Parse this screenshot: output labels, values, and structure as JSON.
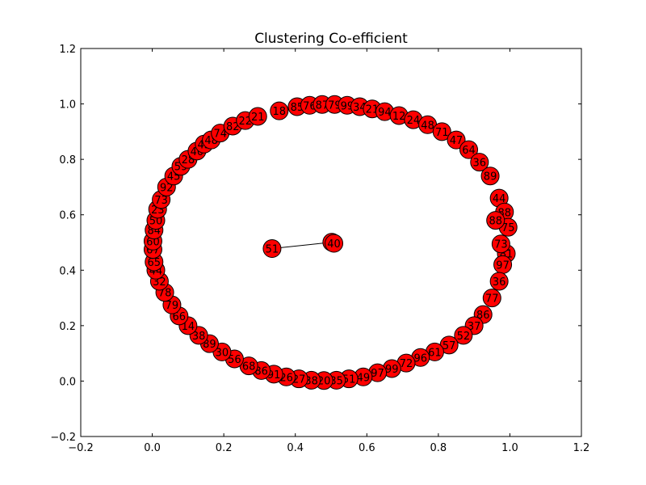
{
  "chart_data": {
    "type": "network-graph",
    "title": "Clustering Co-efficient",
    "xlim": [
      -0.2,
      1.2
    ],
    "ylim": [
      -0.2,
      1.2
    ],
    "x_ticks": [
      -0.2,
      0.0,
      0.2,
      0.4,
      0.6,
      0.8,
      1.0,
      1.2
    ],
    "y_ticks": [
      -0.2,
      0.0,
      0.2,
      0.4,
      0.6,
      0.8,
      1.0,
      1.2
    ],
    "x_tick_labels": [
      "−0.2",
      "0.0",
      "0.2",
      "0.4",
      "0.6",
      "0.8",
      "1.0",
      "1.2"
    ],
    "y_tick_labels": [
      "−0.2",
      "0.0",
      "0.2",
      "0.4",
      "0.6",
      "0.8",
      "1.0",
      "1.2"
    ],
    "grid": false,
    "node_color": "#ff0000",
    "node_edge_color": "#000000",
    "edge_color": "#000000",
    "nodes": [
      {
        "label": "51",
        "x": 0.335,
        "y": 0.478
      },
      {
        "label": "50",
        "x": 0.502,
        "y": 0.501
      },
      {
        "label": "40",
        "x": 0.508,
        "y": 0.497
      },
      {
        "label": "18",
        "x": 0.355,
        "y": 0.975
      },
      {
        "label": "85",
        "x": 0.405,
        "y": 0.99
      },
      {
        "label": "76",
        "x": 0.44,
        "y": 0.995
      },
      {
        "label": "87",
        "x": 0.475,
        "y": 0.998
      },
      {
        "label": "79",
        "x": 0.51,
        "y": 0.998
      },
      {
        "label": "99",
        "x": 0.545,
        "y": 0.995
      },
      {
        "label": "34",
        "x": 0.58,
        "y": 0.99
      },
      {
        "label": "21",
        "x": 0.615,
        "y": 0.982
      },
      {
        "label": "94",
        "x": 0.65,
        "y": 0.972
      },
      {
        "label": "12",
        "x": 0.69,
        "y": 0.958
      },
      {
        "label": "24",
        "x": 0.73,
        "y": 0.943
      },
      {
        "label": "48",
        "x": 0.77,
        "y": 0.925
      },
      {
        "label": "71",
        "x": 0.81,
        "y": 0.9
      },
      {
        "label": "47",
        "x": 0.85,
        "y": 0.87
      },
      {
        "label": "64",
        "x": 0.885,
        "y": 0.835
      },
      {
        "label": "36",
        "x": 0.915,
        "y": 0.79
      },
      {
        "label": "89",
        "x": 0.945,
        "y": 0.74
      },
      {
        "label": "44",
        "x": 0.97,
        "y": 0.66
      },
      {
        "label": "88",
        "x": 0.985,
        "y": 0.61
      },
      {
        "label": "75",
        "x": 0.995,
        "y": 0.555
      },
      {
        "label": "81",
        "x": 0.99,
        "y": 0.46
      },
      {
        "label": "97",
        "x": 0.98,
        "y": 0.42
      },
      {
        "label": "36",
        "x": 0.97,
        "y": 0.36
      },
      {
        "label": "77",
        "x": 0.95,
        "y": 0.3
      },
      {
        "label": "86",
        "x": 0.925,
        "y": 0.24
      },
      {
        "label": "37",
        "x": 0.9,
        "y": 0.2
      },
      {
        "label": "52",
        "x": 0.87,
        "y": 0.165
      },
      {
        "label": "57",
        "x": 0.83,
        "y": 0.13
      },
      {
        "label": "61",
        "x": 0.79,
        "y": 0.105
      },
      {
        "label": "96",
        "x": 0.75,
        "y": 0.085
      },
      {
        "label": "72",
        "x": 0.71,
        "y": 0.065
      },
      {
        "label": "99",
        "x": 0.67,
        "y": 0.045
      },
      {
        "label": "97",
        "x": 0.63,
        "y": 0.03
      },
      {
        "label": "49",
        "x": 0.59,
        "y": 0.015
      },
      {
        "label": "51",
        "x": 0.55,
        "y": 0.008
      },
      {
        "label": "35",
        "x": 0.515,
        "y": 0.003
      },
      {
        "label": "20",
        "x": 0.48,
        "y": 0.002
      },
      {
        "label": "38",
        "x": 0.445,
        "y": 0.003
      },
      {
        "label": "27",
        "x": 0.41,
        "y": 0.008
      },
      {
        "label": "26",
        "x": 0.375,
        "y": 0.015
      },
      {
        "label": "91",
        "x": 0.34,
        "y": 0.025
      },
      {
        "label": "86",
        "x": 0.305,
        "y": 0.038
      },
      {
        "label": "68",
        "x": 0.27,
        "y": 0.055
      },
      {
        "label": "56",
        "x": 0.23,
        "y": 0.08
      },
      {
        "label": "30",
        "x": 0.195,
        "y": 0.105
      },
      {
        "label": "89",
        "x": 0.16,
        "y": 0.135
      },
      {
        "label": "38",
        "x": 0.13,
        "y": 0.165
      },
      {
        "label": "14",
        "x": 0.1,
        "y": 0.2
      },
      {
        "label": "66",
        "x": 0.075,
        "y": 0.235
      },
      {
        "label": "79",
        "x": 0.055,
        "y": 0.275
      },
      {
        "label": "78",
        "x": 0.035,
        "y": 0.32
      },
      {
        "label": "32",
        "x": 0.02,
        "y": 0.36
      },
      {
        "label": "44",
        "x": 0.01,
        "y": 0.4
      },
      {
        "label": "65",
        "x": 0.005,
        "y": 0.43
      },
      {
        "label": "67",
        "x": 0.002,
        "y": 0.475
      },
      {
        "label": "60",
        "x": 0.002,
        "y": 0.505
      },
      {
        "label": "84",
        "x": 0.005,
        "y": 0.545
      },
      {
        "label": "50",
        "x": 0.01,
        "y": 0.58
      },
      {
        "label": "23",
        "x": 0.015,
        "y": 0.62
      },
      {
        "label": "73",
        "x": 0.025,
        "y": 0.655
      },
      {
        "label": "92",
        "x": 0.04,
        "y": 0.7
      },
      {
        "label": "45",
        "x": 0.06,
        "y": 0.74
      },
      {
        "label": "59",
        "x": 0.08,
        "y": 0.775
      },
      {
        "label": "28",
        "x": 0.1,
        "y": 0.8
      },
      {
        "label": "40",
        "x": 0.125,
        "y": 0.83
      },
      {
        "label": "43",
        "x": 0.145,
        "y": 0.855
      },
      {
        "label": "48",
        "x": 0.165,
        "y": 0.87
      },
      {
        "label": "74",
        "x": 0.19,
        "y": 0.895
      },
      {
        "label": "82",
        "x": 0.225,
        "y": 0.92
      },
      {
        "label": "22",
        "x": 0.26,
        "y": 0.94
      },
      {
        "label": "21",
        "x": 0.295,
        "y": 0.955
      },
      {
        "label": "73",
        "x": 0.975,
        "y": 0.495
      },
      {
        "label": "88",
        "x": 0.96,
        "y": 0.58
      }
    ],
    "edges": [
      {
        "source": 0,
        "target": 1
      }
    ]
  }
}
